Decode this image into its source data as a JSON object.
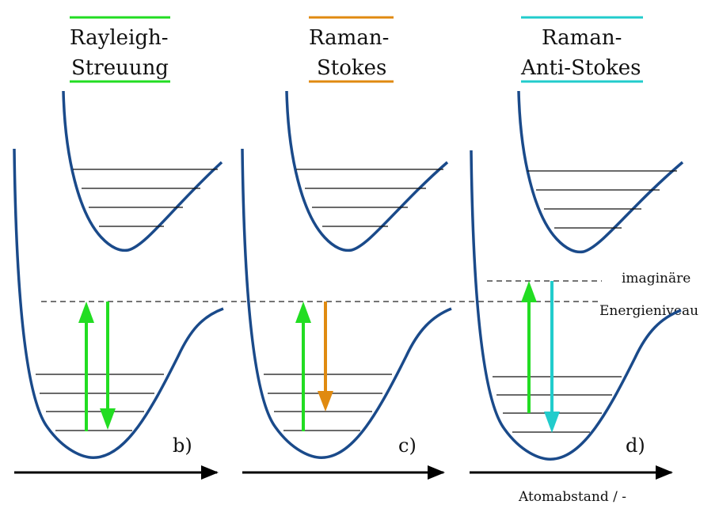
{
  "colors": {
    "curve": "#1a4a8a",
    "level": "#111111",
    "rayleigh": "#22dd22",
    "stokes": "#e08a10",
    "antistokes": "#22cccc",
    "axis": "#000000",
    "dashed": "#222222"
  },
  "panels": [
    {
      "title_line1": "Rayleigh-",
      "title_line2": "Streuung",
      "label": "b)",
      "accent": "#22dd22",
      "emission_color": "#22dd22"
    },
    {
      "title_line1": "Raman-",
      "title_line2": "Stokes",
      "label": "c)",
      "accent": "#e08a10",
      "emission_color": "#e08a10"
    },
    {
      "title_line1": "Raman-",
      "title_line2": "Anti-Stokes",
      "label": "d)",
      "accent": "#22cccc",
      "emission_color": "#22cccc"
    }
  ],
  "virtual_level_label_line1": "imaginäre",
  "virtual_level_label_line2": "Energieniveau",
  "x_axis_label": "Atomabstand / -"
}
